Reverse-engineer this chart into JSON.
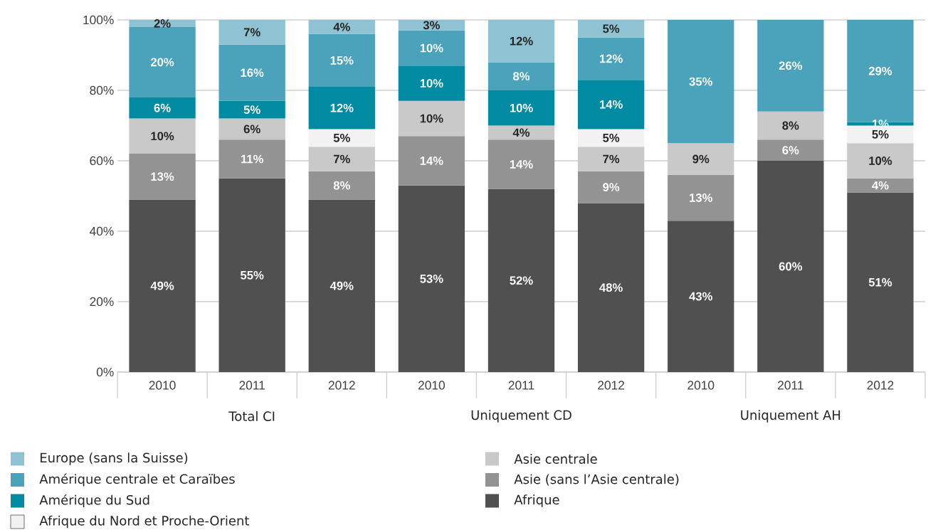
{
  "chart_data": {
    "type": "bar",
    "stacked": true,
    "categories": [
      "2010",
      "2011",
      "2012",
      "2010",
      "2011",
      "2012",
      "2010",
      "2011",
      "2012"
    ],
    "annotations": [
      "Total CI",
      "Uniquement CD",
      "Uniquement AH"
    ],
    "ylim": [
      0,
      100
    ],
    "yticks": [
      {
        "value": 0,
        "label": "0%"
      },
      {
        "value": 20,
        "label": "20%"
      },
      {
        "value": 40,
        "label": "40%"
      },
      {
        "value": 60,
        "label": "60%"
      },
      {
        "value": 80,
        "label": "80%"
      },
      {
        "value": 100,
        "label": "100%"
      }
    ],
    "grid": "y",
    "legend": "bottom",
    "series": [
      {
        "name": "Afrique",
        "color": "#505050",
        "values": [
          49,
          55,
          49,
          53,
          52,
          48,
          43,
          60,
          51
        ],
        "value_labels": [
          "49%",
          "55%",
          "49%",
          "53%",
          "52%",
          "48%",
          "43%",
          "60%",
          "51%"
        ]
      },
      {
        "name": "Asie (sans l’Asie centrale)",
        "color": "#939393",
        "values": [
          13,
          11,
          8,
          14,
          14,
          9,
          13,
          6,
          4
        ],
        "value_labels": [
          "13%",
          "11%",
          "8%",
          "14%",
          "14%",
          "9%",
          "13%",
          "6%",
          "4%"
        ]
      },
      {
        "name": "Asie centrale",
        "color": "#c9c9c9",
        "values": [
          10,
          6,
          7,
          10,
          4,
          7,
          9,
          8,
          10
        ],
        "value_labels": [
          "10%",
          "6%",
          "7%",
          "10%",
          "4%",
          "7%",
          "9%",
          "8%",
          "10%"
        ]
      },
      {
        "name": "Afrique du Nord et Proche-Orient",
        "color": "#f2f2f2",
        "values": [
          null,
          null,
          5,
          null,
          null,
          5,
          null,
          null,
          5
        ],
        "value_labels": [
          null,
          null,
          "5%",
          null,
          null,
          "5%",
          null,
          null,
          "5%"
        ]
      },
      {
        "name": "Amérique du Sud",
        "color": "#008ba2",
        "values": [
          6,
          5,
          12,
          10,
          10,
          14,
          null,
          null,
          1
        ],
        "value_labels": [
          "6%",
          "5%",
          "12%",
          "10%",
          "10%",
          "14%",
          null,
          null,
          "1%"
        ]
      },
      {
        "name": "Amérique centrale et Caraïbes",
        "color": "#4aa3bb",
        "values": [
          20,
          16,
          15,
          10,
          8,
          12,
          35,
          26,
          29
        ],
        "value_labels": [
          "20%",
          "16%",
          "15%",
          "10%",
          "8%",
          "12%",
          "35%",
          "26%",
          "29%"
        ]
      },
      {
        "name": "Europe (sans la Suisse)",
        "color": "#8fc3d3",
        "values": [
          2,
          7,
          4,
          3,
          12,
          5,
          null,
          null,
          null
        ],
        "value_labels": [
          "2%",
          "7%",
          "4%",
          "3%",
          "12%",
          "5%",
          null,
          null,
          null
        ]
      }
    ]
  }
}
